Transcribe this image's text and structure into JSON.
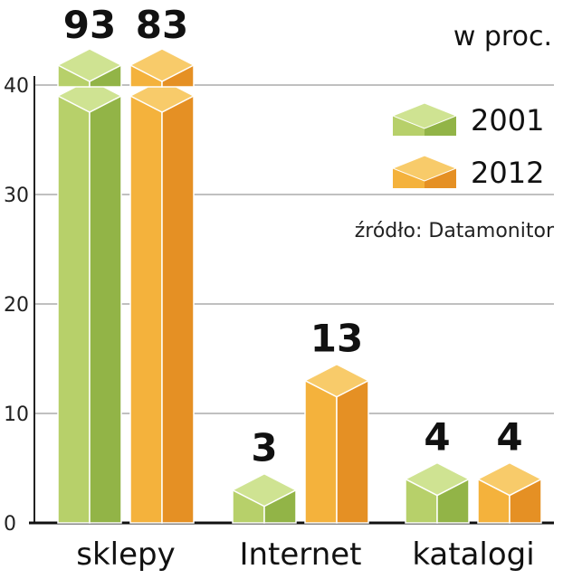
{
  "chart_data": {
    "type": "bar",
    "categories": [
      "sklepy",
      "Internet",
      "katalogi"
    ],
    "series": [
      {
        "name": "2001",
        "values": [
          93,
          3,
          4
        ]
      },
      {
        "name": "2012",
        "values": [
          83,
          13,
          4
        ]
      }
    ],
    "unit": "w proc.",
    "source": "źródło: Datamonitor",
    "yticks": [
      "0",
      "10",
      "20",
      "30",
      "40"
    ],
    "ylim": [
      0,
      40
    ],
    "axis_break": true,
    "grid": true,
    "legend_position": "top-right",
    "colors": {
      "2001": {
        "front": "#b7d06a",
        "side": "#92b447",
        "top": "#cfe392"
      },
      "2012": {
        "front": "#f4b23c",
        "side": "#e59024",
        "top": "#f8cb6a"
      }
    }
  }
}
